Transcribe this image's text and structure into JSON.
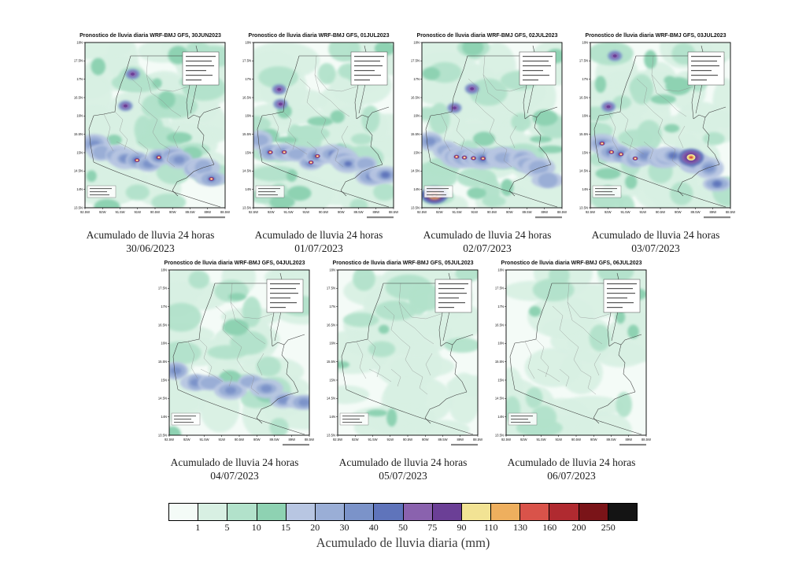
{
  "axes": {
    "lat_ticks": [
      "18N",
      "17.5N",
      "17N",
      "16.5N",
      "16N",
      "15.5N",
      "15N",
      "14.5N",
      "14N",
      "13.5N"
    ],
    "lon_ticks": [
      "92.5W",
      "92W",
      "91.5W",
      "91W",
      "90.5W",
      "90W",
      "89.5W",
      "89W",
      "88.5W"
    ]
  },
  "panels": [
    {
      "title": "Pronostico de lluvia diaria WRF-BMJ GFS, 30JUN2023",
      "caption": "Acumulado de lluvia 24 horas",
      "date": "30/06/2023",
      "field": {
        "seed": 11,
        "intensity": 3,
        "hotspot": null
      }
    },
    {
      "title": "Pronostico de lluvia diaria WRF-BMJ GFS, 01JUL2023",
      "caption": "Acumulado de lluvia 24 horas",
      "date": "01/07/2023",
      "field": {
        "seed": 23,
        "intensity": 3,
        "hotspot": null
      }
    },
    {
      "title": "Pronostico de lluvia diaria WRF-BMJ GFS, 02JUL2023",
      "caption": "Acumulado de lluvia 24 horas",
      "date": "02/07/2023",
      "field": {
        "seed": 37,
        "intensity": 3,
        "hotspot": "sw"
      }
    },
    {
      "title": "Pronostico de lluvia diaria WRF-BMJ GFS, 03JUL2023",
      "caption": "Acumulado de lluvia 24 horas",
      "date": "03/07/2023",
      "field": {
        "seed": 49,
        "intensity": 3,
        "hotspot": "e"
      }
    },
    {
      "title": "Pronostico de lluvia diaria WRF-BMJ GFS, 04JUL2023",
      "caption": "Acumulado de lluvia 24 horas",
      "date": "04/07/2023",
      "field": {
        "seed": 61,
        "intensity": 2,
        "hotspot": null
      }
    },
    {
      "title": "Pronostico de lluvia diaria WRF-BMJ GFS, 05JUL2023",
      "caption": "Acumulado de lluvia 24 horas",
      "date": "05/07/2023",
      "field": {
        "seed": 73,
        "intensity": 1,
        "hotspot": null
      }
    },
    {
      "title": "Pronostico de lluvia diaria WRF-BMJ GFS, 06JUL2023",
      "caption": "Acumulado de lluvia 24 horas",
      "date": "06/07/2023",
      "field": {
        "seed": 85,
        "intensity": 1,
        "hotspot": null
      }
    }
  ],
  "colorbar": {
    "label": "Acumulado de lluvia diaria (mm)",
    "tick_values": [
      "1",
      "5",
      "10",
      "15",
      "20",
      "30",
      "40",
      "50",
      "75",
      "90",
      "110",
      "130",
      "160",
      "200",
      "250"
    ],
    "segment_colors": [
      "#f4fbf7",
      "#d8f0e3",
      "#b2e2cb",
      "#8ed2b2",
      "#b8c6e2",
      "#9aaed6",
      "#7b93c9",
      "#5f74bb",
      "#8a62ae",
      "#6b3f96",
      "#f2e394",
      "#eeaf5e",
      "#d9534a",
      "#b02a30",
      "#7a1418",
      "#141414"
    ]
  }
}
